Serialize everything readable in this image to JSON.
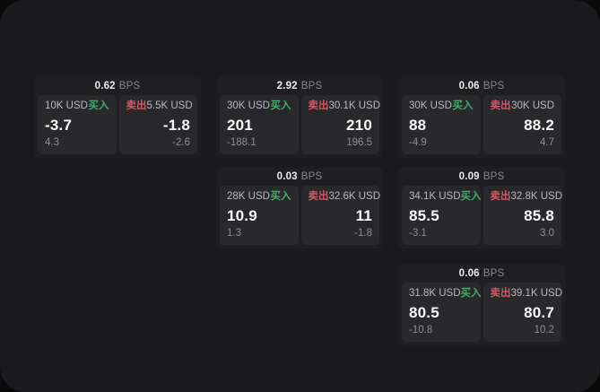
{
  "labels": {
    "bps_unit": "BPS",
    "buy": "买入",
    "sell": "卖出"
  },
  "colors": {
    "page_bg": "#0a0a0a",
    "panel_bg": "#1b1b1d",
    "card_bg": "#1f1f21",
    "subpanel_bg": "#29292c",
    "buy_green": "#3fae68",
    "sell_red": "#cd5a66",
    "price_text": "#fafafa",
    "label_text": "#b9b9be",
    "muted_text": "#8e8e93"
  },
  "cards": [
    {
      "bps": "0.62",
      "col": 0,
      "row": 0,
      "buy": {
        "size": "10K USD",
        "price": "-3.7",
        "delta": "4.3"
      },
      "sell": {
        "size": "5.5K USD",
        "price": "-1.8",
        "delta": "-2.6"
      }
    },
    {
      "bps": "2.92",
      "col": 1,
      "row": 0,
      "buy": {
        "size": "30K USD",
        "price": "201",
        "delta": "-188.1"
      },
      "sell": {
        "size": "30.1K USD",
        "price": "210",
        "delta": "196.5"
      }
    },
    {
      "bps": "0.06",
      "col": 2,
      "row": 0,
      "buy": {
        "size": "30K USD",
        "price": "88",
        "delta": "-4.9"
      },
      "sell": {
        "size": "30K USD",
        "price": "88.2",
        "delta": "4.7"
      }
    },
    {
      "bps": "0.03",
      "col": 1,
      "row": 1,
      "buy": {
        "size": "28K USD",
        "price": "10.9",
        "delta": "1.3"
      },
      "sell": {
        "size": "32.6K USD",
        "price": "11",
        "delta": "-1.8"
      }
    },
    {
      "bps": "0.09",
      "col": 2,
      "row": 1,
      "buy": {
        "size": "34.1K USD",
        "price": "85.5",
        "delta": "-3.1"
      },
      "sell": {
        "size": "32.8K USD",
        "price": "85.8",
        "delta": "3.0"
      }
    },
    {
      "bps": "0.06",
      "col": 2,
      "row": 2,
      "buy": {
        "size": "31.8K USD",
        "price": "80.5",
        "delta": "-10.8"
      },
      "sell": {
        "size": "39.1K USD",
        "price": "80.7",
        "delta": "10.2"
      }
    }
  ]
}
